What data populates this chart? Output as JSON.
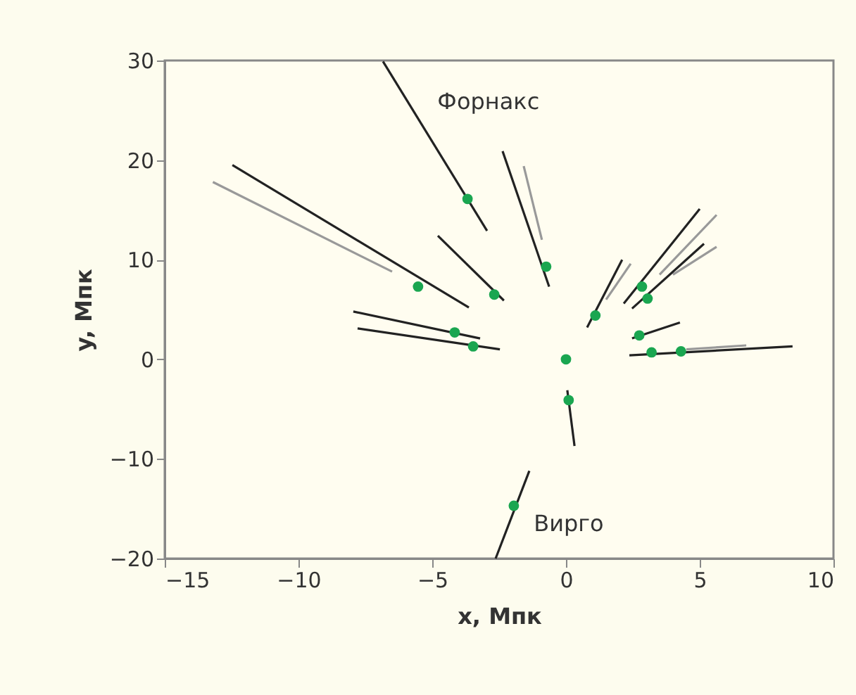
{
  "chart_data": {
    "type": "scatter",
    "xlabel": "x, Мпк",
    "ylabel": "y, Мпк",
    "xlim": [
      -15,
      10
    ],
    "xticks": [
      -15,
      -10,
      -5,
      0,
      5,
      10
    ],
    "ylim": [
      -20,
      30
    ],
    "yticks": [
      -20,
      -10,
      0,
      10,
      20,
      30
    ],
    "grid": false,
    "annotations": [
      {
        "text": "Форнакс",
        "x": -5.9,
        "y": 25.8
      },
      {
        "text": "Вирго",
        "x": -1.95,
        "y": -14.7
      }
    ],
    "series": [
      {
        "type": "line",
        "color": "#999999",
        "x": [
          -13.2,
          -6.5
        ],
        "values": [
          17.8,
          8.8
        ]
      },
      {
        "type": "line",
        "color": "#999999",
        "x": [
          -1.58,
          -0.9
        ],
        "values": [
          19.4,
          12.0
        ]
      },
      {
        "type": "line",
        "color": "#999999",
        "x": [
          2.42,
          1.5
        ],
        "values": [
          9.6,
          6.0
        ]
      },
      {
        "type": "line",
        "color": "#999999",
        "x": [
          5.63,
          3.5
        ],
        "values": [
          14.5,
          8.5
        ]
      },
      {
        "type": "line",
        "color": "#999999",
        "x": [
          5.63,
          4.0
        ],
        "values": [
          11.3,
          8.5
        ]
      },
      {
        "type": "line",
        "color": "#999999",
        "x": [
          6.74,
          4.5
        ],
        "values": [
          1.4,
          1.0
        ]
      },
      {
        "type": "line",
        "color": "#222222",
        "x": [
          -6.84,
          -2.95
        ],
        "values": [
          29.9,
          12.9
        ]
      },
      {
        "type": "line",
        "color": "#222222",
        "x": [
          -12.47,
          -3.63
        ],
        "values": [
          19.5,
          5.2
        ]
      },
      {
        "type": "line",
        "color": "#222222",
        "x": [
          -4.79,
          -2.32
        ],
        "values": [
          12.4,
          5.9
        ]
      },
      {
        "type": "line",
        "color": "#222222",
        "x": [
          -7.95,
          -3.21
        ],
        "values": [
          4.8,
          2.1
        ]
      },
      {
        "type": "line",
        "color": "#222222",
        "x": [
          -7.79,
          -2.47
        ],
        "values": [
          3.1,
          1.0
        ]
      },
      {
        "type": "line",
        "color": "#222222",
        "x": [
          -2.37,
          -0.63
        ],
        "values": [
          20.9,
          7.3
        ]
      },
      {
        "type": "line",
        "color": "#222222",
        "x": [
          2.1,
          0.79
        ],
        "values": [
          10.0,
          3.2
        ]
      },
      {
        "type": "line",
        "color": "#222222",
        "x": [
          5.0,
          2.16
        ],
        "values": [
          15.1,
          5.6
        ]
      },
      {
        "type": "line",
        "color": "#222222",
        "x": [
          5.16,
          2.47
        ],
        "values": [
          11.6,
          5.1
        ]
      },
      {
        "type": "line",
        "color": "#222222",
        "x": [
          4.26,
          2.47
        ],
        "values": [
          3.7,
          2.1
        ]
      },
      {
        "type": "line",
        "color": "#222222",
        "x": [
          8.47,
          2.37
        ],
        "values": [
          1.3,
          0.4
        ]
      },
      {
        "type": "line",
        "color": "#222222",
        "x": [
          0.05,
          0.32
        ],
        "values": [
          -3.1,
          -8.7
        ]
      },
      {
        "type": "line",
        "color": "#222222",
        "x": [
          -1.37,
          -2.63
        ],
        "values": [
          -11.2,
          -20.0
        ]
      },
      {
        "color": "#1aa650",
        "marker": "circle",
        "x": [
          -3.68,
          -5.53,
          -2.68,
          -4.16,
          -3.47,
          -0.74,
          1.1,
          2.84,
          3.05,
          2.74,
          3.2,
          4.3,
          0.0,
          0.1,
          -1.95
        ],
        "values": [
          16.1,
          7.3,
          6.5,
          2.7,
          1.3,
          9.3,
          4.4,
          7.3,
          6.1,
          2.4,
          0.7,
          0.8,
          0.0,
          -4.1,
          -14.7
        ]
      }
    ]
  }
}
